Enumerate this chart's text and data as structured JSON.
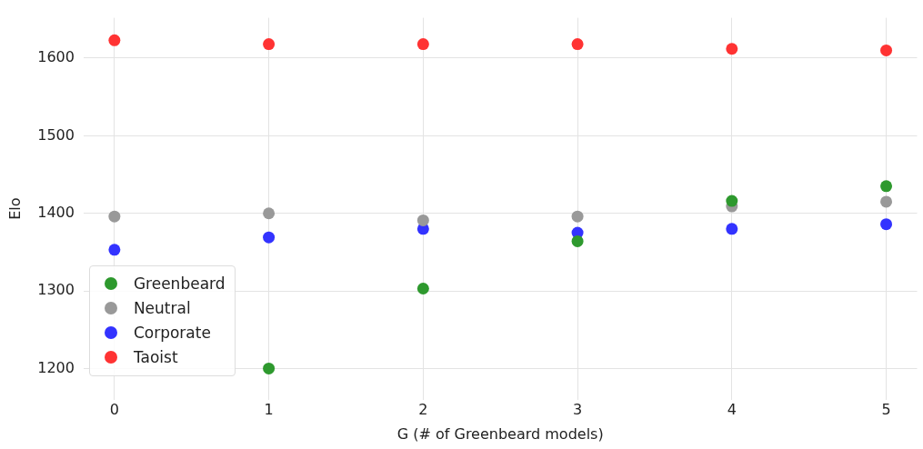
{
  "chart_data": {
    "type": "scatter",
    "xlabel": "G (# of Greenbeard models)",
    "ylabel": "Elo",
    "x": [
      0,
      1,
      2,
      3,
      4,
      5
    ],
    "series": [
      {
        "name": "Greenbeard",
        "color": "#2e992e",
        "values": [
          null,
          1200,
          1303,
          1364,
          1416,
          1435
        ]
      },
      {
        "name": "Neutral",
        "color": "#999999",
        "values": [
          1396,
          1400,
          1391,
          1396,
          1409,
          1415
        ]
      },
      {
        "name": "Corporate",
        "color": "#3333ff",
        "values": [
          1353,
          1369,
          1380,
          1375,
          1380,
          1386
        ]
      },
      {
        "name": "Taoist",
        "color": "#ff3333",
        "values": [
          1623,
          1618,
          1618,
          1618,
          1612,
          1610
        ]
      }
    ],
    "xlim": [
      -0.2,
      5.2
    ],
    "xticks": [
      0,
      1,
      2,
      3,
      4,
      5
    ],
    "ylim": [
      1160,
      1652
    ],
    "yticks": [
      1200,
      1300,
      1400,
      1500,
      1600
    ],
    "grid": true,
    "legend": "bottom left",
    "marker": "circle"
  }
}
